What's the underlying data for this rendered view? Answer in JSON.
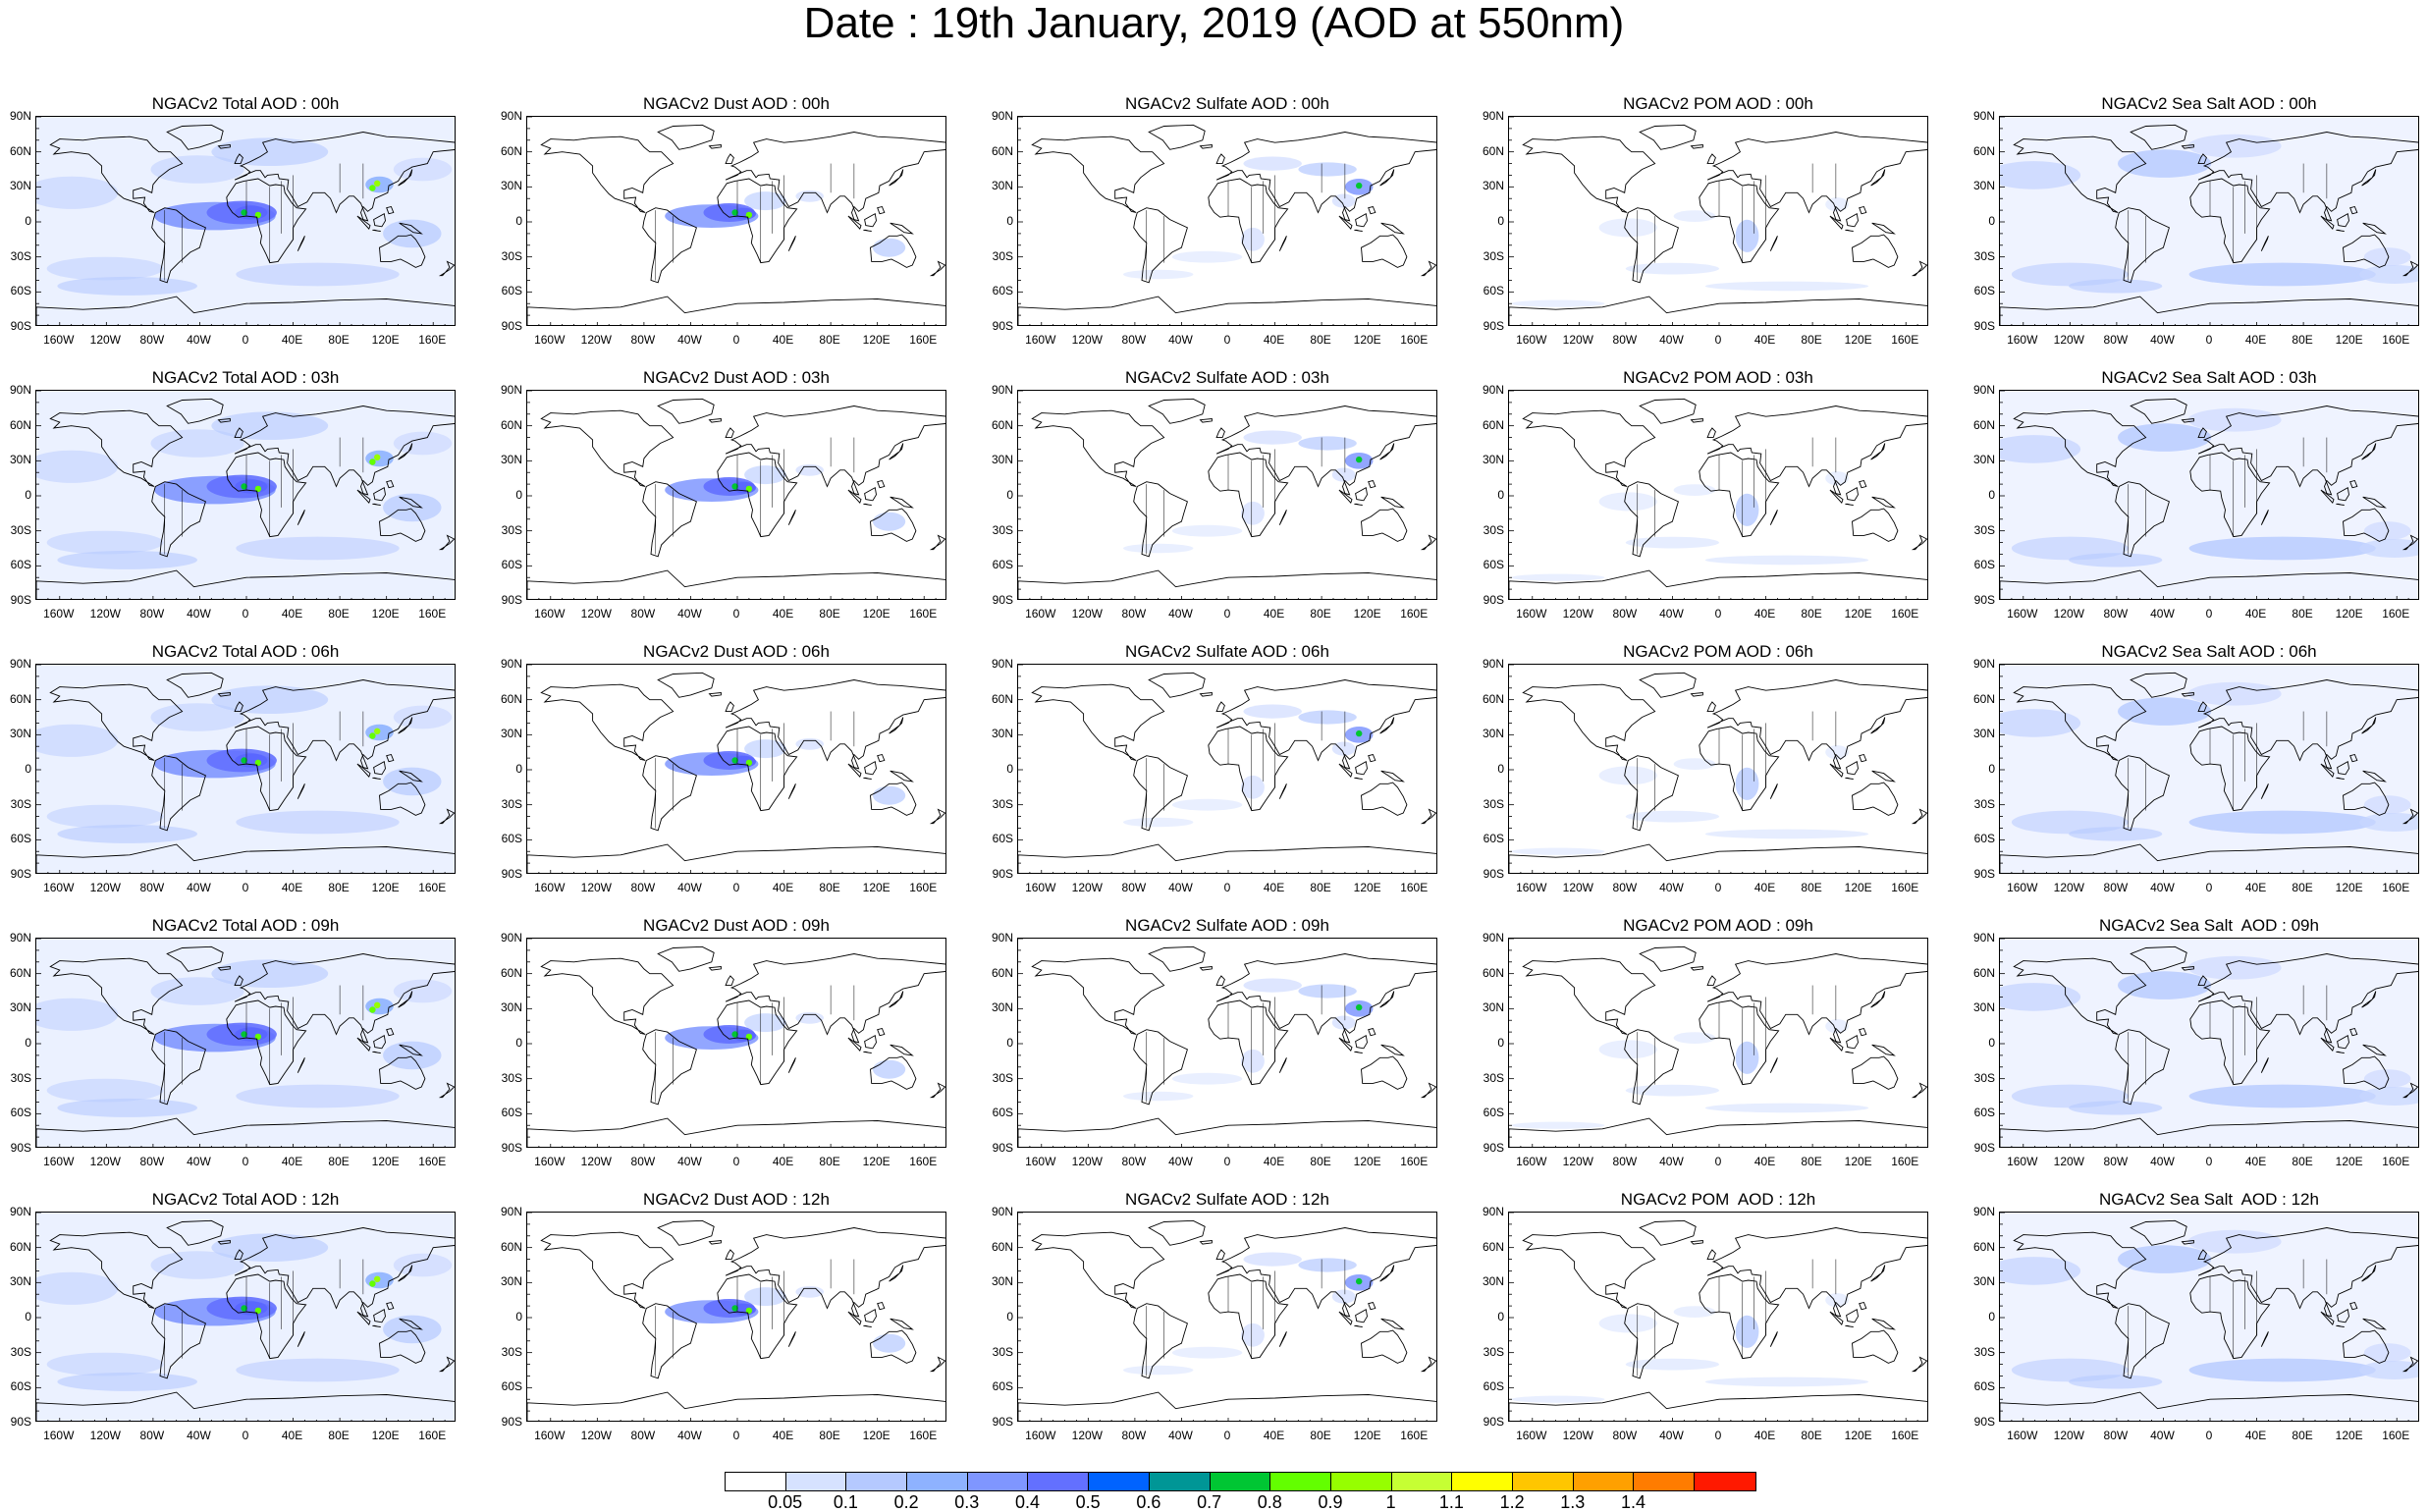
{
  "title": "Date : 19th January, 2019 (AOD at 550nm)",
  "latitude_labels": [
    "90N",
    "60N",
    "30N",
    "0",
    "30S",
    "60S",
    "90S"
  ],
  "longitude_labels": [
    "160W",
    "120W",
    "80W",
    "40W",
    "0",
    "40E",
    "80E",
    "120E",
    "160E"
  ],
  "panels": [
    {
      "title": "NGACv2 Total AOD : 00h",
      "variable": "total",
      "hour": "00h"
    },
    {
      "title": "NGACv2 Dust AOD : 00h",
      "variable": "dust",
      "hour": "00h"
    },
    {
      "title": "NGACv2 Sulfate AOD : 00h",
      "variable": "sulfate",
      "hour": "00h"
    },
    {
      "title": "NGACv2 POM AOD : 00h",
      "variable": "pom",
      "hour": "00h"
    },
    {
      "title": "NGACv2 Sea Salt AOD : 00h",
      "variable": "seasalt",
      "hour": "00h"
    },
    {
      "title": "NGACv2 Total AOD : 03h",
      "variable": "total",
      "hour": "03h"
    },
    {
      "title": "NGACv2 Dust AOD : 03h",
      "variable": "dust",
      "hour": "03h"
    },
    {
      "title": "NGACv2 Sulfate AOD : 03h",
      "variable": "sulfate",
      "hour": "03h"
    },
    {
      "title": "NGACv2 POM AOD : 03h",
      "variable": "pom",
      "hour": "03h"
    },
    {
      "title": "NGACv2 Sea Salt AOD : 03h",
      "variable": "seasalt",
      "hour": "03h"
    },
    {
      "title": "NGACv2 Total AOD : 06h",
      "variable": "total",
      "hour": "06h"
    },
    {
      "title": "NGACv2 Dust AOD : 06h",
      "variable": "dust",
      "hour": "06h"
    },
    {
      "title": "NGACv2 Sulfate AOD : 06h",
      "variable": "sulfate",
      "hour": "06h"
    },
    {
      "title": "NGACv2 POM AOD : 06h",
      "variable": "pom",
      "hour": "06h"
    },
    {
      "title": "NGACv2 Sea Salt AOD : 06h",
      "variable": "seasalt",
      "hour": "06h"
    },
    {
      "title": "NGACv2 Total AOD : 09h",
      "variable": "total",
      "hour": "09h"
    },
    {
      "title": "NGACv2 Dust AOD : 09h",
      "variable": "dust",
      "hour": "09h"
    },
    {
      "title": "NGACv2 Sulfate AOD : 09h",
      "variable": "sulfate",
      "hour": "09h"
    },
    {
      "title": "NGACv2 POM AOD : 09h",
      "variable": "pom",
      "hour": "09h"
    },
    {
      "title": "NGACv2 Sea Salt  AOD : 09h",
      "variable": "seasalt",
      "hour": "09h"
    },
    {
      "title": "NGACv2 Total AOD : 12h",
      "variable": "total",
      "hour": "12h"
    },
    {
      "title": "NGACv2 Dust AOD : 12h",
      "variable": "dust",
      "hour": "12h"
    },
    {
      "title": "NGACv2 Sulfate AOD : 12h",
      "variable": "sulfate",
      "hour": "12h"
    },
    {
      "title": "NGACv2 POM  AOD : 12h",
      "variable": "pom",
      "hour": "12h"
    },
    {
      "title": "NGACv2 Sea Salt  AOD : 12h",
      "variable": "seasalt",
      "hour": "12h"
    }
  ],
  "colorbar": {
    "labels": [
      "0.05",
      "0.1",
      "0.2",
      "0.3",
      "0.4",
      "0.5",
      "0.6",
      "0.7",
      "0.8",
      "0.9",
      "1",
      "1.1",
      "1.2",
      "1.3",
      "1.4"
    ],
    "colors": [
      "#ffffff",
      "#d6e2ff",
      "#b5c9ff",
      "#8eb2ff",
      "#7f96ff",
      "#6370ff",
      "#0063ff",
      "#009696",
      "#00c633",
      "#63ff00",
      "#96ff00",
      "#c6ff33",
      "#ffff00",
      "#ffc600",
      "#ffa000",
      "#ff7c00",
      "#ff1900"
    ]
  }
}
